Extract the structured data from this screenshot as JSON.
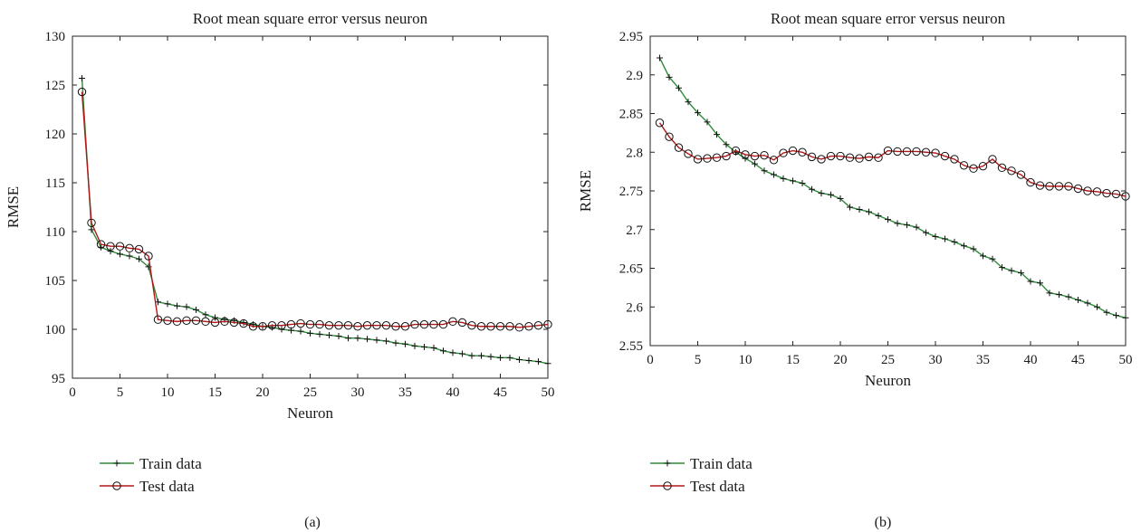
{
  "colors": {
    "train": "#2e8b3a",
    "test": "#b01818",
    "marker": "#111111",
    "axis": "#222222"
  },
  "chart_data": [
    {
      "type": "line",
      "panel_label": "(a)",
      "title": "Root mean square error versus neuron",
      "xlabel": "Neuron",
      "ylabel": "RMSE",
      "xlim": [
        0,
        50
      ],
      "ylim": [
        95,
        130
      ],
      "xticks": [
        0,
        5,
        10,
        15,
        20,
        25,
        30,
        35,
        40,
        45,
        50
      ],
      "yticks": [
        95,
        100,
        105,
        110,
        115,
        120,
        125,
        130
      ],
      "legend": {
        "placement": "below"
      },
      "x": [
        1,
        2,
        3,
        4,
        5,
        6,
        7,
        8,
        9,
        10,
        11,
        12,
        13,
        14,
        15,
        16,
        17,
        18,
        19,
        20,
        21,
        22,
        23,
        24,
        25,
        26,
        27,
        28,
        29,
        30,
        31,
        32,
        33,
        34,
        35,
        36,
        37,
        38,
        39,
        40,
        41,
        42,
        43,
        44,
        45,
        46,
        47,
        48,
        49,
        50
      ],
      "series": [
        {
          "name": "Train data",
          "color": "#2e8b3a",
          "marker": "plus",
          "values": [
            125.7,
            110.2,
            108.4,
            108.0,
            107.7,
            107.5,
            107.2,
            106.4,
            102.8,
            102.6,
            102.4,
            102.3,
            102.0,
            101.5,
            101.2,
            101.0,
            100.9,
            100.7,
            100.5,
            100.3,
            100.2,
            100.0,
            99.9,
            99.8,
            99.6,
            99.5,
            99.4,
            99.3,
            99.1,
            99.1,
            99.0,
            98.9,
            98.8,
            98.6,
            98.5,
            98.3,
            98.2,
            98.1,
            97.8,
            97.6,
            97.5,
            97.3,
            97.3,
            97.2,
            97.1,
            97.1,
            96.9,
            96.8,
            96.7,
            96.5
          ]
        },
        {
          "name": "Test data",
          "color": "#b01818",
          "marker": "circle",
          "values": [
            124.3,
            110.9,
            108.7,
            108.5,
            108.5,
            108.3,
            108.2,
            107.5,
            101.0,
            100.9,
            100.8,
            100.9,
            100.9,
            100.8,
            100.7,
            100.8,
            100.7,
            100.6,
            100.3,
            100.3,
            100.4,
            100.4,
            100.5,
            100.6,
            100.5,
            100.5,
            100.4,
            100.4,
            100.4,
            100.3,
            100.4,
            100.4,
            100.4,
            100.3,
            100.3,
            100.5,
            100.5,
            100.5,
            100.5,
            100.8,
            100.7,
            100.4,
            100.3,
            100.3,
            100.3,
            100.3,
            100.2,
            100.3,
            100.4,
            100.5
          ]
        }
      ]
    },
    {
      "type": "line",
      "panel_label": "(b)",
      "title": "Root mean square error versus neuron",
      "xlabel": "Neuron",
      "ylabel": "RMSE",
      "xlim": [
        0,
        50
      ],
      "ylim": [
        2.55,
        2.95
      ],
      "xticks": [
        0,
        5,
        10,
        15,
        20,
        25,
        30,
        35,
        40,
        45,
        50
      ],
      "yticks": [
        "2.55",
        "2.6",
        "2.65",
        "2.7",
        "2.75",
        "2.8",
        "2.85",
        "2.9",
        "2.95"
      ],
      "legend": {
        "placement": "below"
      },
      "x": [
        1,
        2,
        3,
        4,
        5,
        6,
        7,
        8,
        9,
        10,
        11,
        12,
        13,
        14,
        15,
        16,
        17,
        18,
        19,
        20,
        21,
        22,
        23,
        24,
        25,
        26,
        27,
        28,
        29,
        30,
        31,
        32,
        33,
        34,
        35,
        36,
        37,
        38,
        39,
        40,
        41,
        42,
        43,
        44,
        45,
        46,
        47,
        48,
        49,
        50
      ],
      "series": [
        {
          "name": "Train data",
          "color": "#2e8b3a",
          "marker": "plus",
          "values": [
            2.922,
            2.897,
            2.883,
            2.865,
            2.851,
            2.839,
            2.823,
            2.81,
            2.8,
            2.792,
            2.785,
            2.776,
            2.771,
            2.766,
            2.763,
            2.76,
            2.752,
            2.747,
            2.745,
            2.74,
            2.729,
            2.726,
            2.723,
            2.718,
            2.713,
            2.708,
            2.706,
            2.703,
            2.696,
            2.691,
            2.688,
            2.684,
            2.679,
            2.675,
            2.666,
            2.662,
            2.651,
            2.647,
            2.644,
            2.633,
            2.631,
            2.618,
            2.616,
            2.613,
            2.609,
            2.605,
            2.6,
            2.593,
            2.589,
            2.586
          ]
        },
        {
          "name": "Test data",
          "color": "#b01818",
          "marker": "circle",
          "values": [
            2.838,
            2.82,
            2.806,
            2.798,
            2.791,
            2.792,
            2.793,
            2.795,
            2.802,
            2.797,
            2.795,
            2.796,
            2.79,
            2.799,
            2.802,
            2.8,
            2.794,
            2.791,
            2.795,
            2.795,
            2.793,
            2.792,
            2.794,
            2.793,
            2.802,
            2.801,
            2.801,
            2.801,
            2.8,
            2.799,
            2.795,
            2.791,
            2.783,
            2.779,
            2.782,
            2.791,
            2.78,
            2.776,
            2.771,
            2.761,
            2.757,
            2.756,
            2.756,
            2.756,
            2.753,
            2.75,
            2.749,
            2.747,
            2.746,
            2.743
          ]
        }
      ]
    }
  ]
}
